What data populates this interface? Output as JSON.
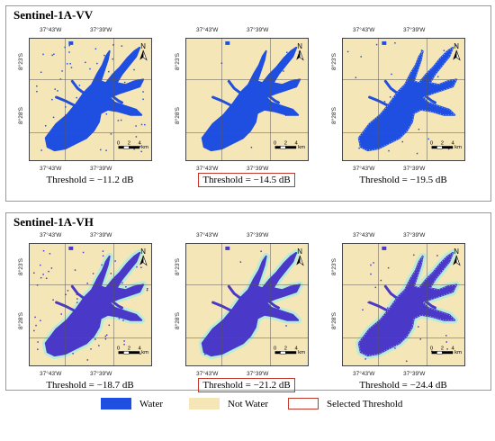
{
  "colors": {
    "water": "#1f4fe0",
    "water_vh": "#4a38c8",
    "not_water": "#f5e6b8",
    "halo": "#b8ecd8",
    "selected": "#c0392b"
  },
  "ticks": {
    "lon1": "37°43'W",
    "lon2": "37°39'W",
    "lat1": "8°23'S",
    "lat2": "8°28'S"
  },
  "north": "N",
  "scale": {
    "l0": "0",
    "l2": "2",
    "l4": "4",
    "unit": "km"
  },
  "panels": [
    {
      "title": "Sentinel-1A-VV",
      "maps": [
        {
          "caption": "Threshold = −11.2 dB",
          "selected": false,
          "noise": "high"
        },
        {
          "caption": "Threshold = −14.5 dB",
          "selected": true,
          "noise": "low"
        },
        {
          "caption": "Threshold = −19.5 dB",
          "selected": false,
          "noise": "speckle"
        }
      ]
    },
    {
      "title": "Sentinel-1A-VH",
      "maps": [
        {
          "caption": "Threshold = −18.7 dB",
          "selected": false,
          "noise": "high"
        },
        {
          "caption": "Threshold = −21.2 dB",
          "selected": true,
          "noise": "low"
        },
        {
          "caption": "Threshold = −24.4 dB",
          "selected": false,
          "noise": "speckle"
        }
      ]
    }
  ],
  "legend": [
    {
      "label": "Water",
      "kind": "water"
    },
    {
      "label": "Not Water",
      "kind": "not_water"
    },
    {
      "label": "Selected Threshold",
      "kind": "selected"
    }
  ]
}
